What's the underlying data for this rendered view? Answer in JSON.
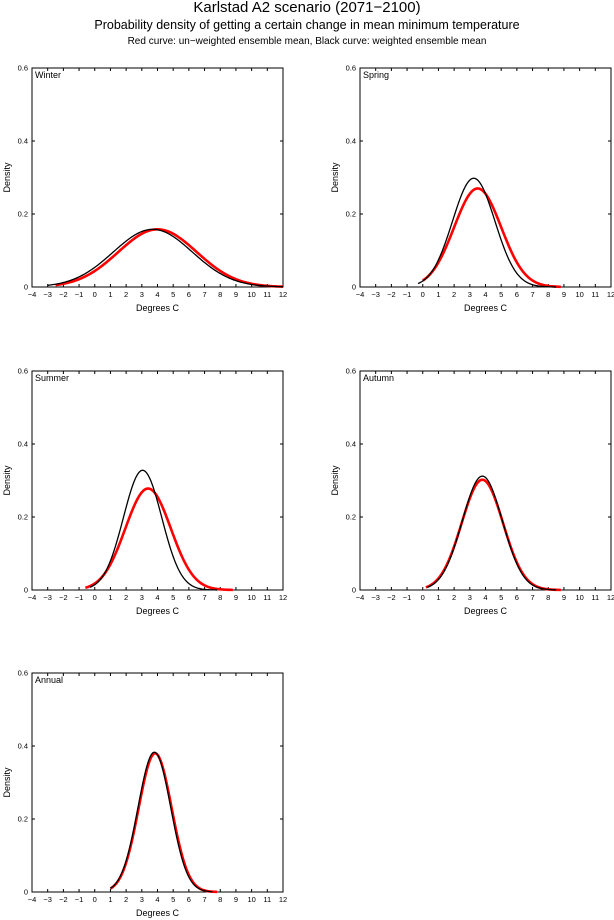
{
  "header": {
    "title": "Karlstad A2 scenario (2071−2100)",
    "subtitle": "Probability density of getting a certain change in mean minimum temperature",
    "note": "Red curve: un−weighted ensemble mean, Black curve: weighted ensemble mean"
  },
  "colors": {
    "weighted": "#000000",
    "unweighted": "#ff0000",
    "axes": "#000000"
  },
  "chart_data": [
    {
      "type": "line",
      "panel": "Winter",
      "xlabel": "Degrees C",
      "ylabel": "Density",
      "xlim": [
        -4,
        12
      ],
      "ylim": [
        0,
        0.6
      ],
      "xticks": [
        -4,
        -3,
        -2,
        -1,
        0,
        1,
        2,
        3,
        4,
        5,
        6,
        7,
        8,
        9,
        10,
        11,
        12
      ],
      "xticklabels": [
        "−4",
        "−3",
        "−2",
        "−1",
        "0",
        "1",
        "2",
        "3",
        "4",
        "5",
        "6",
        "7",
        "8",
        "9",
        "10",
        "11",
        "12"
      ],
      "yticks": [
        0,
        0.2,
        0.4,
        0.6
      ],
      "yticklabels": [
        "0",
        "0.2",
        "0.4",
        "0.6"
      ],
      "series": [
        {
          "name": "weighted ensemble mean",
          "color": "#000000",
          "x_range": [
            -3.0,
            12.0
          ],
          "mean": 3.7,
          "sd": 2.52,
          "peak": 0.158
        },
        {
          "name": "un−weighted ensemble mean",
          "color": "#ff0000",
          "x_range": [
            -2.5,
            12.0
          ],
          "mean": 4.0,
          "sd": 2.5,
          "peak": 0.158
        }
      ]
    },
    {
      "type": "line",
      "panel": "Spring",
      "xlabel": "Degrees C",
      "ylabel": "Density",
      "xlim": [
        -4,
        12
      ],
      "ylim": [
        0,
        0.6
      ],
      "xticks": [
        -4,
        -3,
        -2,
        -1,
        0,
        1,
        2,
        3,
        4,
        5,
        6,
        7,
        8,
        9,
        10,
        11,
        12
      ],
      "xticklabels": [
        "−4",
        "−3",
        "−2",
        "−1",
        "0",
        "1",
        "2",
        "3",
        "4",
        "5",
        "6",
        "7",
        "8",
        "9",
        "10",
        "11",
        "12"
      ],
      "yticks": [
        0,
        0.2,
        0.4,
        0.6
      ],
      "yticklabels": [
        "0",
        "0.2",
        "0.4",
        "0.6"
      ],
      "series": [
        {
          "name": "weighted ensemble mean",
          "color": "#000000",
          "x_range": [
            -0.3,
            8.5
          ],
          "mean": 3.25,
          "sd": 1.35,
          "peak": 0.298
        },
        {
          "name": "un−weighted ensemble mean",
          "color": "#ff0000",
          "x_range": [
            0.0,
            8.8
          ],
          "mean": 3.5,
          "sd": 1.5,
          "peak": 0.27
        }
      ]
    },
    {
      "type": "line",
      "panel": "Summer",
      "xlabel": "Degrees C",
      "ylabel": "Density",
      "xlim": [
        -4,
        12
      ],
      "ylim": [
        0,
        0.6
      ],
      "xticks": [
        -4,
        -3,
        -2,
        -1,
        0,
        1,
        2,
        3,
        4,
        5,
        6,
        7,
        8,
        9,
        10,
        11,
        12
      ],
      "xticklabels": [
        "−4",
        "−3",
        "−2",
        "−1",
        "0",
        "1",
        "2",
        "3",
        "4",
        "5",
        "6",
        "7",
        "8",
        "9",
        "10",
        "11",
        "12"
      ],
      "yticks": [
        0,
        0.2,
        0.4,
        0.6
      ],
      "yticklabels": [
        "0",
        "0.2",
        "0.4",
        "0.6"
      ],
      "series": [
        {
          "name": "weighted ensemble mean",
          "color": "#000000",
          "x_range": [
            -0.3,
            7.8
          ],
          "mean": 3.05,
          "sd": 1.22,
          "peak": 0.328
        },
        {
          "name": "un−weighted ensemble mean",
          "color": "#ff0000",
          "x_range": [
            -0.6,
            8.8
          ],
          "mean": 3.4,
          "sd": 1.45,
          "peak": 0.278
        }
      ]
    },
    {
      "type": "line",
      "panel": "Autumn",
      "xlabel": "Degrees C",
      "ylabel": "Density",
      "xlim": [
        -4,
        12
      ],
      "ylim": [
        0,
        0.6
      ],
      "xticks": [
        -4,
        -3,
        -2,
        -1,
        0,
        1,
        2,
        3,
        4,
        5,
        6,
        7,
        8,
        9,
        10,
        11,
        12
      ],
      "xticklabels": [
        "−4",
        "−3",
        "−2",
        "−1",
        "0",
        "1",
        "2",
        "3",
        "4",
        "5",
        "6",
        "7",
        "8",
        "9",
        "10",
        "11",
        "12"
      ],
      "yticks": [
        0,
        0.2,
        0.4,
        0.6
      ],
      "yticklabels": [
        "0",
        "0.2",
        "0.4",
        "0.6"
      ],
      "series": [
        {
          "name": "weighted ensemble mean",
          "color": "#000000",
          "x_range": [
            0.3,
            8.5
          ],
          "mean": 3.8,
          "sd": 1.28,
          "peak": 0.312
        },
        {
          "name": "un−weighted ensemble mean",
          "color": "#ff0000",
          "x_range": [
            0.2,
            8.8
          ],
          "mean": 3.8,
          "sd": 1.32,
          "peak": 0.302
        }
      ]
    },
    {
      "type": "line",
      "panel": "Annual",
      "xlabel": "Degrees C",
      "ylabel": "Density",
      "xlim": [
        -4,
        12
      ],
      "ylim": [
        0,
        0.6
      ],
      "xticks": [
        -4,
        -3,
        -2,
        -1,
        0,
        1,
        2,
        3,
        4,
        5,
        6,
        7,
        8,
        9,
        10,
        11,
        12
      ],
      "xticklabels": [
        "−4",
        "−3",
        "−2",
        "−1",
        "0",
        "1",
        "2",
        "3",
        "4",
        "5",
        "6",
        "7",
        "8",
        "9",
        "10",
        "11",
        "12"
      ],
      "yticks": [
        0,
        0.2,
        0.4,
        0.6
      ],
      "yticklabels": [
        "0",
        "0.2",
        "0.4",
        "0.6"
      ],
      "series": [
        {
          "name": "weighted ensemble mean",
          "color": "#000000",
          "x_range": [
            1.0,
            7.5
          ],
          "mean": 3.8,
          "sd": 1.04,
          "peak": 0.383
        },
        {
          "name": "un−weighted ensemble mean",
          "color": "#ff0000",
          "x_range": [
            1.0,
            7.8
          ],
          "mean": 3.85,
          "sd": 1.05,
          "peak": 0.38
        }
      ]
    }
  ]
}
